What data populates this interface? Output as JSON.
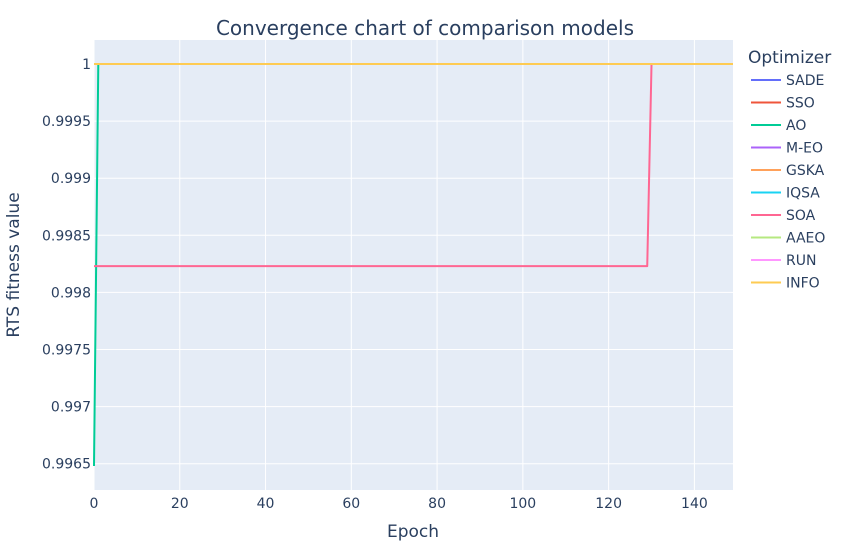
{
  "chart_data": {
    "type": "line",
    "title": "Convergence chart of comparison models",
    "xlabel": "Epoch",
    "ylabel": "RTS fitness value",
    "xlim": [
      0,
      149
    ],
    "ylim": [
      0.99627,
      1.00021
    ],
    "x_ticks": [
      0,
      20,
      40,
      60,
      80,
      100,
      120,
      140
    ],
    "y_ticks": [
      0.9965,
      0.997,
      0.9975,
      0.998,
      0.9985,
      0.999,
      0.9995,
      1
    ],
    "y_tick_labels": [
      "0.9965",
      "0.997",
      "0.9975",
      "0.998",
      "0.9985",
      "0.999",
      "0.9995",
      "1"
    ],
    "grid": true,
    "legend": {
      "title": "Optimizer",
      "placement": "right"
    },
    "series": [
      {
        "name": "SADE",
        "color": "#636efa",
        "points": [
          [
            0,
            1
          ],
          [
            149,
            1
          ]
        ]
      },
      {
        "name": "SSO",
        "color": "#ef553b",
        "points": [
          [
            0,
            1
          ],
          [
            149,
            1
          ]
        ]
      },
      {
        "name": "AO",
        "color": "#00cc96",
        "points": [
          [
            0,
            0.99648
          ],
          [
            1,
            1
          ],
          [
            149,
            1
          ]
        ]
      },
      {
        "name": "M-EO",
        "color": "#ab63fa",
        "points": [
          [
            0,
            1
          ],
          [
            149,
            1
          ]
        ]
      },
      {
        "name": "GSKA",
        "color": "#ffa15a",
        "points": [
          [
            0,
            1
          ],
          [
            149,
            1
          ]
        ]
      },
      {
        "name": "IQSA",
        "color": "#19d3f3",
        "points": [
          [
            0,
            1
          ],
          [
            149,
            1
          ]
        ]
      },
      {
        "name": "SOA",
        "color": "#ff6692",
        "points": [
          [
            0,
            0.99823
          ],
          [
            129,
            0.99823
          ],
          [
            130,
            1
          ],
          [
            149,
            1
          ]
        ]
      },
      {
        "name": "AAEO",
        "color": "#b6e880",
        "points": [
          [
            0,
            1
          ],
          [
            149,
            1
          ]
        ]
      },
      {
        "name": "RUN",
        "color": "#ff97ff",
        "points": [
          [
            0,
            1
          ],
          [
            149,
            1
          ]
        ]
      },
      {
        "name": "INFO",
        "color": "#fecb52",
        "points": [
          [
            0,
            1
          ],
          [
            149,
            1
          ]
        ]
      }
    ]
  },
  "colors": {
    "plot_background": "#e5ecf6",
    "grid": "#ffffff",
    "text": "#2a3f5f"
  }
}
